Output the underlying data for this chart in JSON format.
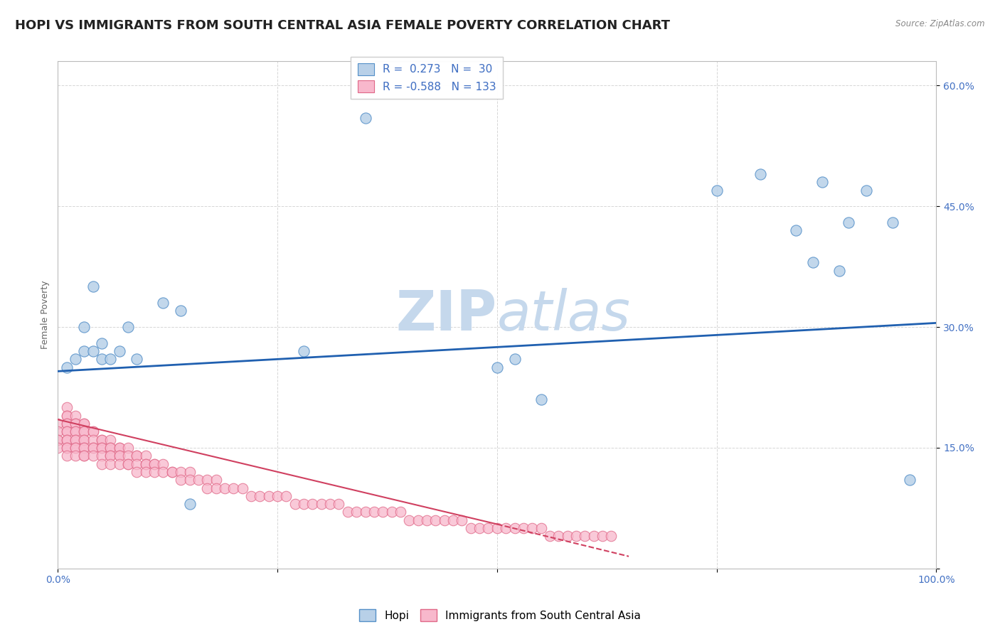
{
  "title": "HOPI VS IMMIGRANTS FROM SOUTH CENTRAL ASIA FEMALE POVERTY CORRELATION CHART",
  "source_text": "Source: ZipAtlas.com",
  "ylabel": "Female Poverty",
  "xlim": [
    0,
    1
  ],
  "ylim": [
    0,
    0.63
  ],
  "xtick_positions": [
    0.0,
    0.25,
    0.5,
    0.75,
    1.0
  ],
  "xtick_labels": [
    "0.0%",
    "",
    "",
    "",
    "100.0%"
  ],
  "ytick_positions": [
    0.0,
    0.15,
    0.3,
    0.45,
    0.6
  ],
  "ytick_labels": [
    "",
    "15.0%",
    "30.0%",
    "45.0%",
    "60.0%"
  ],
  "hopi_R": 0.273,
  "hopi_N": 30,
  "imm_R": -0.588,
  "imm_N": 133,
  "hopi_fill_color": "#b8d0e8",
  "hopi_edge_color": "#5590c8",
  "imm_fill_color": "#f8b8cc",
  "imm_edge_color": "#e06888",
  "hopi_line_color": "#2060b0",
  "imm_line_color": "#d04060",
  "watermark_zip": "ZIP",
  "watermark_atlas": "atlas",
  "background_color": "#ffffff",
  "grid_color": "#cccccc",
  "title_color": "#222222",
  "source_color": "#888888",
  "tick_color": "#4472c4",
  "ylabel_color": "#666666",
  "hopi_x": [
    0.01,
    0.02,
    0.03,
    0.03,
    0.04,
    0.04,
    0.05,
    0.05,
    0.06,
    0.07,
    0.08,
    0.09,
    0.12,
    0.14,
    0.28,
    0.5,
    0.75,
    0.8,
    0.84,
    0.86,
    0.87,
    0.89,
    0.9,
    0.92,
    0.95,
    0.97,
    0.35,
    0.52,
    0.55,
    0.15
  ],
  "hopi_y": [
    0.25,
    0.26,
    0.27,
    0.3,
    0.27,
    0.35,
    0.28,
    0.26,
    0.26,
    0.27,
    0.3,
    0.26,
    0.33,
    0.32,
    0.27,
    0.25,
    0.47,
    0.49,
    0.42,
    0.38,
    0.48,
    0.37,
    0.43,
    0.47,
    0.43,
    0.11,
    0.56,
    0.26,
    0.21,
    0.08
  ],
  "imm_x_cluster": [
    0.0,
    0.0,
    0.0,
    0.0,
    0.0,
    0.01,
    0.01,
    0.01,
    0.01,
    0.01,
    0.01,
    0.01,
    0.01,
    0.01,
    0.01,
    0.01,
    0.01,
    0.02,
    0.02,
    0.02,
    0.02,
    0.02,
    0.02,
    0.02,
    0.02,
    0.02,
    0.02,
    0.03,
    0.03,
    0.03,
    0.03,
    0.03,
    0.03,
    0.03,
    0.03,
    0.03,
    0.03,
    0.04,
    0.04,
    0.04,
    0.04,
    0.04,
    0.04,
    0.05,
    0.05,
    0.05,
    0.05,
    0.05,
    0.05,
    0.06,
    0.06,
    0.06,
    0.06,
    0.06,
    0.06,
    0.07,
    0.07,
    0.07,
    0.07,
    0.07,
    0.08,
    0.08,
    0.08,
    0.08,
    0.09,
    0.09,
    0.09,
    0.09,
    0.1,
    0.1,
    0.1,
    0.1,
    0.11,
    0.11,
    0.11,
    0.12,
    0.12,
    0.13,
    0.13,
    0.14,
    0.14,
    0.15,
    0.15,
    0.16,
    0.17,
    0.17,
    0.18,
    0.18,
    0.19,
    0.2,
    0.21,
    0.22,
    0.23,
    0.24,
    0.25,
    0.26,
    0.27,
    0.28,
    0.29,
    0.3,
    0.31,
    0.32,
    0.33,
    0.34,
    0.35,
    0.36,
    0.37,
    0.38,
    0.39,
    0.4,
    0.41,
    0.42,
    0.43,
    0.44,
    0.45,
    0.46,
    0.47,
    0.48,
    0.49,
    0.5,
    0.51,
    0.52,
    0.53,
    0.54,
    0.55,
    0.56,
    0.57,
    0.58,
    0.59,
    0.6,
    0.61,
    0.62,
    0.63
  ],
  "imm_y_cluster": [
    0.18,
    0.17,
    0.16,
    0.16,
    0.15,
    0.2,
    0.19,
    0.19,
    0.18,
    0.18,
    0.17,
    0.17,
    0.16,
    0.16,
    0.15,
    0.15,
    0.14,
    0.19,
    0.18,
    0.18,
    0.17,
    0.17,
    0.16,
    0.16,
    0.15,
    0.15,
    0.14,
    0.18,
    0.18,
    0.17,
    0.17,
    0.16,
    0.16,
    0.15,
    0.15,
    0.14,
    0.14,
    0.17,
    0.17,
    0.16,
    0.15,
    0.15,
    0.14,
    0.16,
    0.16,
    0.15,
    0.15,
    0.14,
    0.13,
    0.16,
    0.15,
    0.15,
    0.14,
    0.14,
    0.13,
    0.15,
    0.15,
    0.14,
    0.14,
    0.13,
    0.15,
    0.14,
    0.13,
    0.13,
    0.14,
    0.14,
    0.13,
    0.12,
    0.14,
    0.13,
    0.13,
    0.12,
    0.13,
    0.13,
    0.12,
    0.13,
    0.12,
    0.12,
    0.12,
    0.12,
    0.11,
    0.12,
    0.11,
    0.11,
    0.11,
    0.1,
    0.11,
    0.1,
    0.1,
    0.1,
    0.1,
    0.09,
    0.09,
    0.09,
    0.09,
    0.09,
    0.08,
    0.08,
    0.08,
    0.08,
    0.08,
    0.08,
    0.07,
    0.07,
    0.07,
    0.07,
    0.07,
    0.07,
    0.07,
    0.06,
    0.06,
    0.06,
    0.06,
    0.06,
    0.06,
    0.06,
    0.05,
    0.05,
    0.05,
    0.05,
    0.05,
    0.05,
    0.05,
    0.05,
    0.05,
    0.04,
    0.04,
    0.04,
    0.04,
    0.04,
    0.04,
    0.04,
    0.04
  ],
  "title_fontsize": 13,
  "axis_label_fontsize": 9,
  "tick_fontsize": 10,
  "legend_fontsize": 11,
  "figsize": [
    14.06,
    8.92
  ],
  "dpi": 100
}
